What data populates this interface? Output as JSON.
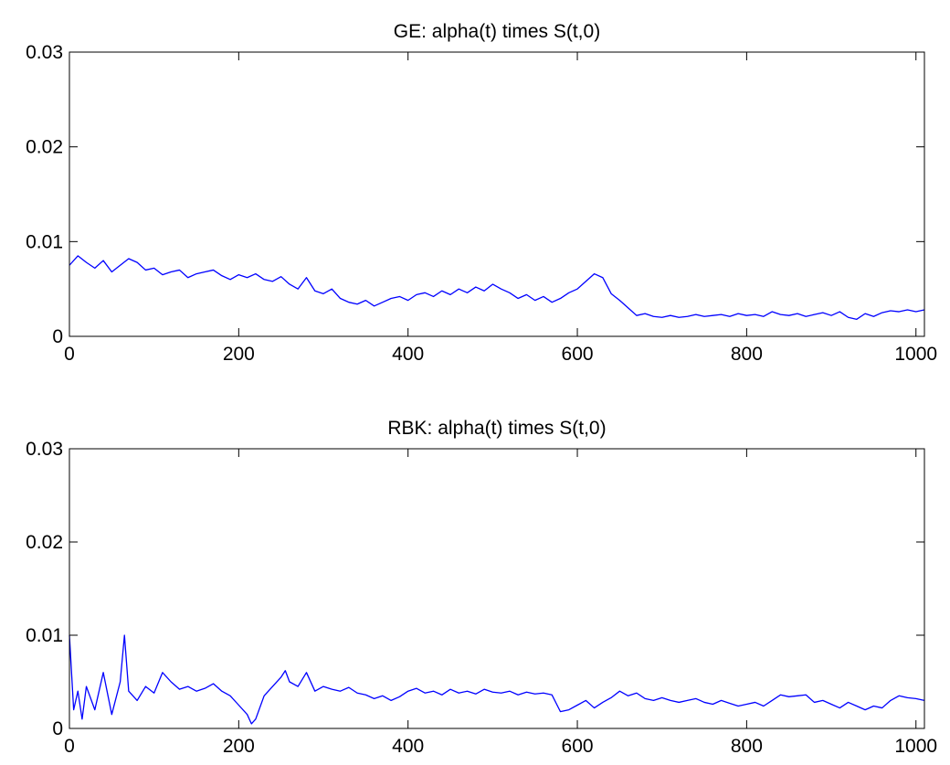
{
  "chart_data": [
    {
      "type": "line",
      "title": "GE: alpha(t) times S(t,0)",
      "xlabel": "",
      "ylabel": "",
      "xlim": [
        0,
        1010
      ],
      "ylim": [
        0,
        0.03
      ],
      "xticks": [
        0,
        200,
        400,
        600,
        800,
        1000
      ],
      "xtick_labels": [
        "0",
        "200",
        "400",
        "600",
        "800",
        "1000"
      ],
      "yticks": [
        0,
        0.01,
        0.02,
        0.03
      ],
      "ytick_labels": [
        "0",
        "0.01",
        "0.02",
        "0.03"
      ],
      "grid": false,
      "line_color": "#0000ff",
      "series": [
        {
          "x": [
            0,
            10,
            20,
            30,
            40,
            50,
            60,
            70,
            80,
            90,
            100,
            110,
            120,
            130,
            140,
            150,
            160,
            170,
            180,
            190,
            200,
            210,
            220,
            230,
            240,
            250,
            260,
            270,
            280,
            290,
            300,
            310,
            320,
            330,
            340,
            350,
            360,
            370,
            380,
            390,
            400,
            410,
            420,
            430,
            440,
            450,
            460,
            470,
            480,
            490,
            500,
            510,
            520,
            530,
            540,
            550,
            560,
            570,
            580,
            590,
            600,
            610,
            620,
            630,
            640,
            650,
            660,
            670,
            680,
            690,
            700,
            710,
            720,
            730,
            740,
            750,
            760,
            770,
            780,
            790,
            800,
            810,
            820,
            830,
            840,
            850,
            860,
            870,
            880,
            890,
            900,
            910,
            920,
            930,
            940,
            950,
            960,
            970,
            980,
            990,
            1000,
            1010
          ],
          "values": [
            0.0075,
            0.0085,
            0.0078,
            0.0072,
            0.008,
            0.0068,
            0.0075,
            0.0082,
            0.0078,
            0.007,
            0.0072,
            0.0065,
            0.0068,
            0.007,
            0.0062,
            0.0066,
            0.0068,
            0.007,
            0.0064,
            0.006,
            0.0065,
            0.0062,
            0.0066,
            0.006,
            0.0058,
            0.0063,
            0.0055,
            0.005,
            0.0062,
            0.0048,
            0.0045,
            0.005,
            0.004,
            0.0036,
            0.0034,
            0.0038,
            0.0032,
            0.0036,
            0.004,
            0.0042,
            0.0038,
            0.0044,
            0.0046,
            0.0042,
            0.0048,
            0.0044,
            0.005,
            0.0046,
            0.0052,
            0.0048,
            0.0055,
            0.005,
            0.0046,
            0.004,
            0.0044,
            0.0038,
            0.0042,
            0.0036,
            0.004,
            0.0046,
            0.005,
            0.0058,
            0.0066,
            0.0062,
            0.0045,
            0.0038,
            0.003,
            0.0022,
            0.0024,
            0.0021,
            0.002,
            0.0022,
            0.002,
            0.0021,
            0.0023,
            0.0021,
            0.0022,
            0.0023,
            0.0021,
            0.0024,
            0.0022,
            0.0023,
            0.0021,
            0.0026,
            0.0023,
            0.0022,
            0.0024,
            0.0021,
            0.0023,
            0.0025,
            0.0022,
            0.0026,
            0.002,
            0.0018,
            0.0024,
            0.0021,
            0.0025,
            0.0027,
            0.0026,
            0.0028,
            0.0026,
            0.0028
          ]
        }
      ]
    },
    {
      "type": "line",
      "title": "RBK: alpha(t) times S(t,0)",
      "xlabel": "",
      "ylabel": "",
      "xlim": [
        0,
        1010
      ],
      "ylim": [
        0,
        0.03
      ],
      "xticks": [
        0,
        200,
        400,
        600,
        800,
        1000
      ],
      "xtick_labels": [
        "0",
        "200",
        "400",
        "600",
        "800",
        "1000"
      ],
      "yticks": [
        0,
        0.01,
        0.02,
        0.03
      ],
      "ytick_labels": [
        "0",
        "0.01",
        "0.02",
        "0.03"
      ],
      "grid": false,
      "line_color": "#0000ff",
      "series": [
        {
          "x": [
            0,
            5,
            10,
            15,
            20,
            30,
            40,
            50,
            60,
            65,
            70,
            80,
            90,
            100,
            110,
            120,
            130,
            140,
            150,
            160,
            170,
            180,
            190,
            200,
            210,
            215,
            220,
            230,
            240,
            250,
            255,
            260,
            270,
            280,
            290,
            300,
            310,
            320,
            330,
            340,
            350,
            360,
            370,
            380,
            390,
            400,
            410,
            420,
            430,
            440,
            450,
            460,
            470,
            480,
            490,
            500,
            510,
            520,
            530,
            540,
            550,
            560,
            570,
            580,
            590,
            600,
            610,
            620,
            630,
            640,
            650,
            660,
            670,
            680,
            690,
            700,
            710,
            720,
            730,
            740,
            750,
            760,
            770,
            780,
            790,
            800,
            810,
            820,
            830,
            840,
            850,
            860,
            870,
            880,
            890,
            900,
            910,
            920,
            930,
            940,
            950,
            960,
            970,
            980,
            990,
            1000,
            1010
          ],
          "values": [
            0.01,
            0.002,
            0.004,
            0.001,
            0.0045,
            0.002,
            0.006,
            0.0015,
            0.005,
            0.01,
            0.004,
            0.003,
            0.0045,
            0.0038,
            0.006,
            0.005,
            0.0042,
            0.0045,
            0.004,
            0.0043,
            0.0048,
            0.004,
            0.0035,
            0.0025,
            0.0015,
            0.0005,
            0.001,
            0.0035,
            0.0045,
            0.0055,
            0.0062,
            0.005,
            0.0045,
            0.006,
            0.004,
            0.0045,
            0.0042,
            0.004,
            0.0044,
            0.0038,
            0.0036,
            0.0032,
            0.0035,
            0.003,
            0.0034,
            0.004,
            0.0043,
            0.0038,
            0.004,
            0.0036,
            0.0042,
            0.0038,
            0.004,
            0.0037,
            0.0042,
            0.0039,
            0.0038,
            0.004,
            0.0036,
            0.0039,
            0.0037,
            0.0038,
            0.0036,
            0.0018,
            0.002,
            0.0025,
            0.003,
            0.0022,
            0.0028,
            0.0033,
            0.004,
            0.0035,
            0.0038,
            0.0032,
            0.003,
            0.0033,
            0.003,
            0.0028,
            0.003,
            0.0032,
            0.0028,
            0.0026,
            0.003,
            0.0027,
            0.0024,
            0.0026,
            0.0028,
            0.0024,
            0.003,
            0.0036,
            0.0034,
            0.0035,
            0.0036,
            0.0028,
            0.003,
            0.0026,
            0.0022,
            0.0028,
            0.0024,
            0.002,
            0.0024,
            0.0022,
            0.003,
            0.0035,
            0.0033,
            0.0032,
            0.003
          ]
        }
      ]
    }
  ]
}
